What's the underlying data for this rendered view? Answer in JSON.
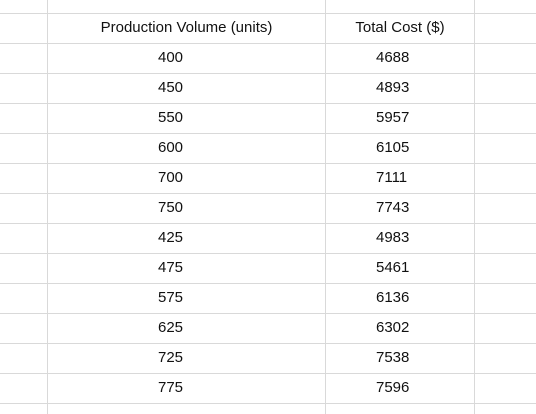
{
  "table": {
    "headers": [
      "Production Volume (units)",
      "Total Cost ($)"
    ],
    "rows": [
      [
        "400",
        "4688"
      ],
      [
        "450",
        "4893"
      ],
      [
        "550",
        "5957"
      ],
      [
        "600",
        "6105"
      ],
      [
        "700",
        "7111"
      ],
      [
        "750",
        "7743"
      ],
      [
        "425",
        "4983"
      ],
      [
        "475",
        "5461"
      ],
      [
        "575",
        "6136"
      ],
      [
        "625",
        "6302"
      ],
      [
        "725",
        "7538"
      ],
      [
        "775",
        "7596"
      ]
    ]
  },
  "colors": {
    "gridline": "#d9d9d9",
    "text": "#111111",
    "background": "#ffffff"
  }
}
